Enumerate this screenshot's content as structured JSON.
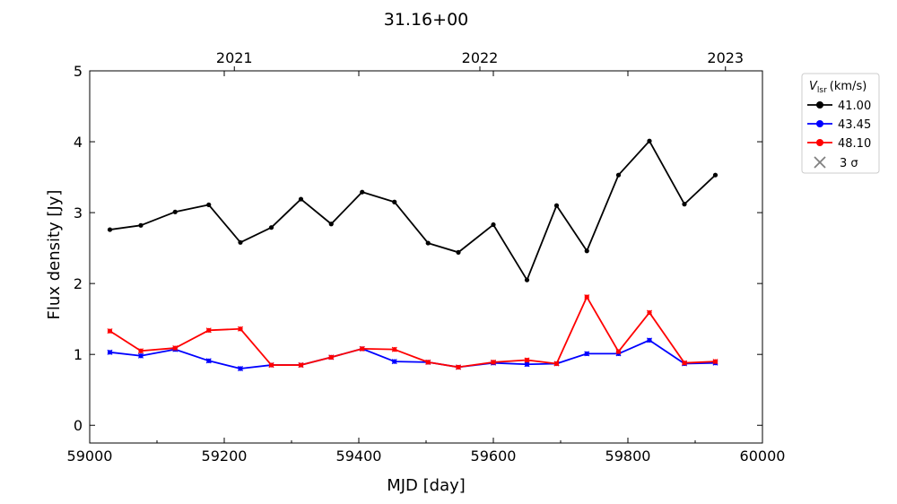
{
  "chart_data": {
    "type": "line",
    "title": "31.16+00",
    "xlabel": "MJD [day]",
    "ylabel": "Flux density [Jy]",
    "xlim": [
      59000,
      60000
    ],
    "ylim": [
      -0.25,
      5
    ],
    "xticks": [
      59000,
      59200,
      59400,
      59600,
      59800,
      60000
    ],
    "yticks": [
      0,
      1,
      2,
      3,
      4,
      5
    ],
    "top_axis": {
      "labels": [
        "2021",
        "2022",
        "2023"
      ],
      "mjd": [
        59215,
        59580,
        59945
      ]
    },
    "grid": false,
    "legend": {
      "placement": "outside-top-right",
      "title_main": "V",
      "title_sub": "lsr",
      "title_unit": "(km/s)",
      "sigma_label": "3 σ"
    },
    "x": [
      59030,
      59076,
      59127,
      59177,
      59224,
      59270,
      59314,
      59359,
      59405,
      59453,
      59503,
      59548,
      59600,
      59650,
      59694,
      59739,
      59786,
      59832,
      59884,
      59930
    ],
    "series": [
      {
        "name": "41.00",
        "color": "#000000",
        "values": [
          2.76,
          2.82,
          3.01,
          3.11,
          2.58,
          2.79,
          3.19,
          2.84,
          3.29,
          3.15,
          2.57,
          2.44,
          2.83,
          2.05,
          3.1,
          2.46,
          3.53,
          4.01,
          3.12,
          3.53
        ]
      },
      {
        "name": "43.45",
        "color": "#0000ff",
        "values": [
          1.03,
          0.98,
          1.07,
          0.91,
          0.8,
          0.85,
          0.85,
          0.96,
          1.08,
          0.9,
          0.89,
          0.82,
          0.88,
          0.86,
          0.87,
          1.01,
          1.01,
          1.2,
          0.87,
          0.88
        ]
      },
      {
        "name": "48.10",
        "color": "#ff0000",
        "values": [
          1.33,
          1.05,
          1.09,
          1.34,
          1.36,
          0.85,
          0.85,
          0.96,
          1.08,
          1.07,
          0.89,
          0.82,
          0.89,
          0.92,
          0.87,
          1.81,
          1.04,
          1.59,
          0.88,
          0.9
        ]
      }
    ],
    "three_sigma_marker_color": "#808080"
  }
}
